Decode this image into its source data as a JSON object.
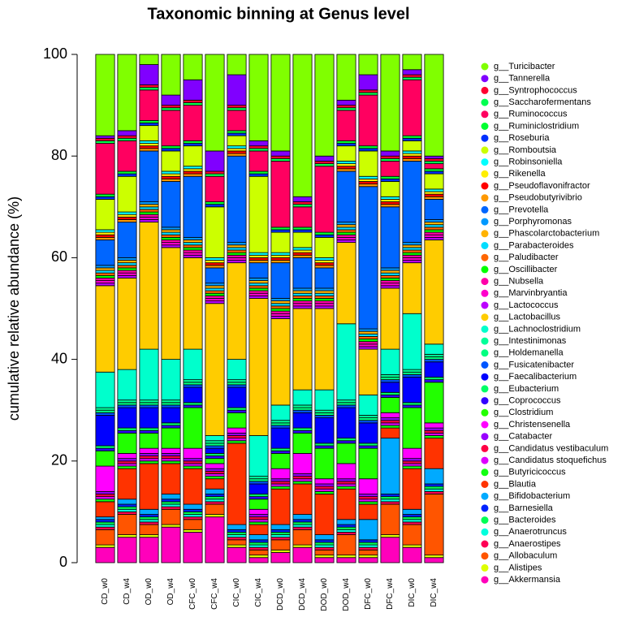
{
  "chart_data": {
    "type": "stacked_bar",
    "title": "Taxonomic binning at Genus level",
    "y_label": "cumulative relative abundance (%)",
    "categories": [
      "CD_w0",
      "CD_w4",
      "OD_w0",
      "OD_w4",
      "CFC_w0",
      "CFC_w4",
      "CIC_w0",
      "CIC_w4",
      "DCD_w0",
      "DCD_w4",
      "DOD_w0",
      "DOD_w4",
      "DFC_w0",
      "DFC_w4",
      "DIC_w0",
      "DIC_w4"
    ],
    "ylim": [
      0,
      100
    ],
    "yticks": [
      0,
      20,
      40,
      60,
      80,
      100
    ],
    "series": [
      {
        "name": "g__Turicibacter",
        "color": "#80ff00",
        "values": [
          16,
          15,
          2,
          8,
          5,
          19,
          4,
          17,
          19,
          28,
          20,
          9,
          4,
          19,
          3,
          20
        ]
      },
      {
        "name": "g__Tannerella",
        "color": "#8000ff",
        "values": [
          0.5,
          1,
          4,
          2,
          4,
          4,
          6,
          1,
          1,
          1,
          1,
          1,
          3,
          1,
          1,
          0.5
        ]
      },
      {
        "name": "g__Syntrophococcus",
        "color": "#ff0030",
        "values": [
          0.5,
          0.5,
          0.5,
          0.5,
          0.5,
          0.5,
          0.5,
          0.5,
          0.5,
          0.5,
          0.5,
          0.5,
          0.5,
          0.5,
          0.5,
          0.5
        ]
      },
      {
        "name": "g__Saccharofermentans",
        "color": "#00ff50",
        "values": [
          0.5,
          0.5,
          0.5,
          0.5,
          0.5,
          0.5,
          0.5,
          0.5,
          0.5,
          0.5,
          0.5,
          0.5,
          0.5,
          0.5,
          0.5,
          0.5
        ]
      },
      {
        "name": "g__Ruminococcus",
        "color": "#ff0060",
        "values": [
          10,
          6,
          6,
          7,
          7,
          5,
          4,
          4,
          13,
          4,
          13,
          6,
          10,
          3,
          11,
          1
        ]
      },
      {
        "name": "g__Ruminiclostridium",
        "color": "#00ff30",
        "values": [
          0.5,
          0.5,
          0.5,
          0.5,
          0.5,
          0.5,
          0.5,
          0.5,
          0.5,
          0.5,
          0.5,
          0.5,
          0.5,
          0.5,
          0.5,
          0.5
        ]
      },
      {
        "name": "g__Roseburia",
        "color": "#0030ff",
        "values": [
          0.5,
          0.5,
          0.5,
          0.5,
          0.5,
          0.5,
          0.5,
          0.5,
          0.5,
          0.5,
          0.5,
          0.5,
          0.5,
          0.5,
          0.5,
          0.5
        ]
      },
      {
        "name": "g__Romboutsia",
        "color": "#ccff00",
        "values": [
          6,
          7,
          3,
          4,
          4,
          10,
          2,
          15,
          4,
          3,
          4,
          3,
          5,
          3,
          2,
          3
        ]
      },
      {
        "name": "g__Robinsoniella",
        "color": "#00ffff",
        "values": [
          0.5,
          0.5,
          0.5,
          0.5,
          0.5,
          0.5,
          0.5,
          0.5,
          0.5,
          0.5,
          0.5,
          0.5,
          0.5,
          0.5,
          0.5,
          0.5
        ]
      },
      {
        "name": "g__Rikenella",
        "color": "#ffee00",
        "values": [
          0.5,
          0.5,
          0.5,
          0.5,
          0.5,
          0.5,
          0.5,
          0.5,
          0.5,
          0.5,
          0.5,
          0.5,
          0.5,
          0.5,
          0.5,
          0.5
        ]
      },
      {
        "name": "g__Pseudoflavonifractor",
        "color": "#ff0000",
        "values": [
          0.5,
          0.5,
          0.5,
          0.5,
          0.5,
          0.5,
          0.5,
          0.5,
          0.5,
          0.5,
          0.5,
          0.5,
          0.5,
          0.5,
          0.5,
          0.5
        ]
      },
      {
        "name": "g__Pseudobutyrivibrio",
        "color": "#ff9900",
        "values": [
          0.5,
          0.5,
          0.5,
          0.5,
          0.5,
          0.5,
          0.5,
          0.5,
          0.5,
          0.5,
          0.5,
          0.5,
          0.5,
          0.5,
          0.5,
          0.5
        ]
      },
      {
        "name": "g__Prevotella",
        "color": "#0066ff",
        "values": [
          5,
          7,
          10,
          9,
          12,
          3,
          17,
          3,
          7,
          6,
          4,
          10,
          28,
          12,
          16,
          4
        ]
      },
      {
        "name": "g__Porphyromonas",
        "color": "#0099ff",
        "values": [
          0.5,
          0.5,
          0.5,
          0.5,
          0.5,
          0.5,
          0.5,
          0.5,
          0.5,
          0.5,
          0.5,
          0.5,
          0.5,
          0.5,
          0.5,
          0.5
        ]
      },
      {
        "name": "g__Phascolarctobacterium",
        "color": "#ffb300",
        "values": [
          0.5,
          0.5,
          0.5,
          0.5,
          0.5,
          0.5,
          0.5,
          0.5,
          0.5,
          0.5,
          0.5,
          0.5,
          0.5,
          0.5,
          0.5,
          0.5
        ]
      },
      {
        "name": "g__Parabacteroides",
        "color": "#00ddff",
        "values": [
          0.5,
          0.5,
          0.5,
          0.5,
          0.5,
          0.5,
          0.5,
          0.5,
          0.5,
          0.5,
          0.5,
          0.5,
          0.5,
          0.5,
          0.5,
          0.5
        ]
      },
      {
        "name": "g__Paludibacter",
        "color": "#ff6600",
        "values": [
          0.5,
          0.5,
          0.5,
          0.5,
          0.5,
          0.5,
          0.5,
          0.5,
          0.5,
          0.5,
          0.5,
          0.5,
          0.5,
          0.5,
          0.5,
          0.5
        ]
      },
      {
        "name": "g__Oscillibacter",
        "color": "#00ff00",
        "values": [
          0.5,
          0.5,
          0.5,
          0.5,
          0.5,
          0.5,
          0.5,
          0.5,
          0.5,
          0.5,
          0.5,
          0.5,
          0.5,
          0.5,
          0.5,
          0.5
        ]
      },
      {
        "name": "g__Nubsella",
        "color": "#ff00aa",
        "values": [
          0.5,
          0.5,
          0.5,
          0.5,
          0.5,
          0.5,
          0.5,
          0.5,
          0.5,
          0.5,
          0.5,
          0.5,
          0.5,
          0.5,
          0.5,
          0.5
        ]
      },
      {
        "name": "g__Marvinbryantia",
        "color": "#ff00cc",
        "values": [
          0.5,
          0.5,
          0.5,
          0.5,
          0.5,
          0.5,
          0.5,
          0.5,
          0.5,
          0.5,
          0.5,
          0.5,
          0.5,
          0.5,
          0.5,
          0.5
        ]
      },
      {
        "name": "g__Lactococcus",
        "color": "#bb00ff",
        "values": [
          0.5,
          0.5,
          0.5,
          0.5,
          0.5,
          0.5,
          0.5,
          0.5,
          0.5,
          0.5,
          0.5,
          0.5,
          0.5,
          0.5,
          0.5,
          0.5
        ]
      },
      {
        "name": "g__Lactobacillus",
        "color": "#ffcc00",
        "values": [
          17,
          18,
          25,
          22,
          18,
          26,
          19,
          27,
          17,
          16,
          16,
          16,
          9,
          12,
          10,
          20.5
        ]
      },
      {
        "name": "g__Lachnoclostridium",
        "color": "#00ffcc",
        "values": [
          7,
          6,
          10,
          8,
          6,
          1,
          4,
          8,
          3,
          3,
          4,
          15,
          4,
          5,
          11,
          2
        ]
      },
      {
        "name": "g__Intestinimonas",
        "color": "#00ff99",
        "values": [
          0.5,
          0.5,
          0.5,
          0.5,
          0.5,
          0.5,
          0.5,
          0.5,
          0.5,
          0.5,
          0.5,
          0.5,
          0.5,
          0.5,
          0.5,
          0.5
        ]
      },
      {
        "name": "g__Holdemanella",
        "color": "#00ff80",
        "values": [
          0.5,
          0.5,
          0.5,
          0.5,
          0.5,
          0.5,
          0.5,
          0.5,
          0.5,
          0.5,
          0.5,
          0.5,
          0.5,
          0.5,
          0.5,
          0.5
        ]
      },
      {
        "name": "g__Fusicatenibacter",
        "color": "#0055ff",
        "values": [
          0.5,
          0.5,
          0.5,
          0.5,
          0.5,
          0.5,
          0.5,
          0.5,
          0.5,
          0.5,
          0.5,
          0.5,
          0.5,
          0.5,
          0.5,
          0.5
        ]
      },
      {
        "name": "g__Faecalibacterium",
        "color": "#0000ff",
        "values": [
          6,
          4,
          4,
          3,
          3,
          1,
          4,
          2,
          4,
          3,
          5,
          6,
          4,
          2,
          5,
          3
        ]
      },
      {
        "name": "g__Eubacterium",
        "color": "#00ff66",
        "values": [
          0.5,
          0.5,
          0.5,
          0.5,
          0.5,
          0.5,
          0.5,
          0.5,
          0.5,
          0.5,
          0.5,
          0.5,
          0.5,
          0.5,
          0.5,
          0.5
        ]
      },
      {
        "name": "g__Coprococcus",
        "color": "#3300ff",
        "values": [
          0.5,
          0.5,
          0.5,
          0.5,
          0.5,
          0.5,
          0.5,
          0.5,
          0.5,
          0.5,
          0.5,
          0.5,
          0.5,
          0.5,
          0.5,
          0.5
        ]
      },
      {
        "name": "g__Clostridium",
        "color": "#22ff00",
        "values": [
          3,
          4,
          3,
          4,
          8,
          1,
          3,
          2,
          3,
          4,
          6,
          4,
          6,
          3,
          8,
          8
        ]
      },
      {
        "name": "g__Christensenella",
        "color": "#ff00ff",
        "values": [
          5,
          1,
          1,
          1,
          2,
          1,
          1,
          1,
          2,
          4,
          1,
          3,
          3,
          1,
          2,
          1
        ]
      },
      {
        "name": "g__Catabacter",
        "color": "#9900ff",
        "values": [
          0.5,
          0.5,
          0.5,
          0.5,
          0.5,
          0.5,
          0.5,
          0.5,
          0.5,
          0.5,
          0.5,
          0.5,
          0.5,
          0.5,
          0.5,
          0.5
        ]
      },
      {
        "name": "g__Candidatus vestibaculum",
        "color": "#ff0044",
        "values": [
          0.5,
          0.5,
          0.5,
          0.5,
          0.5,
          0.5,
          0.5,
          0.5,
          0.5,
          0.5,
          0.5,
          0.5,
          0.5,
          0.5,
          0.5,
          0.5
        ]
      },
      {
        "name": "g__Candidatus stoquefichus",
        "color": "#dd00ff",
        "values": [
          0.5,
          0.5,
          0.5,
          0.5,
          0.5,
          0.5,
          0.5,
          0.5,
          0.5,
          0.5,
          0.5,
          0.5,
          0.5,
          0.5,
          0.5,
          0.5
        ]
      },
      {
        "name": "g__Butyricicoccus",
        "color": "#11ff11",
        "values": [
          0.5,
          0.5,
          0.5,
          0.5,
          0.5,
          0.5,
          0.5,
          0.5,
          0.5,
          0.5,
          0.5,
          0.5,
          0.5,
          0.5,
          0.5,
          0.5
        ]
      },
      {
        "name": "g__Blautia",
        "color": "#ff3300",
        "values": [
          3,
          6,
          9,
          6,
          7,
          2,
          16,
          2,
          7,
          6,
          8,
          6,
          3,
          2,
          8,
          6
        ]
      },
      {
        "name": "g__Bifidobacterium",
        "color": "#00aaff",
        "values": [
          0.5,
          1,
          1,
          1,
          1,
          1,
          1,
          1,
          1,
          1,
          1,
          1,
          4,
          11,
          1,
          3
        ]
      },
      {
        "name": "g__Barnesiella",
        "color": "#0022ff",
        "values": [
          0.5,
          0.5,
          0.5,
          0.5,
          0.5,
          0.5,
          0.5,
          0.5,
          0.5,
          0.5,
          0.5,
          0.5,
          0.5,
          0.5,
          0.5,
          0.5
        ]
      },
      {
        "name": "g__Bacteroides",
        "color": "#00ff55",
        "values": [
          0.5,
          0.5,
          0.5,
          0.5,
          0.5,
          0.5,
          0.5,
          0.5,
          0.5,
          0.5,
          0.5,
          0.5,
          0.5,
          0.5,
          0.5,
          0.5
        ]
      },
      {
        "name": "g__Anaerotruncus",
        "color": "#00ffdd",
        "values": [
          0.5,
          0.5,
          0.5,
          0.5,
          0.5,
          0.5,
          0.5,
          0.5,
          0.5,
          0.5,
          0.5,
          0.5,
          0.5,
          0.5,
          0.5,
          0.5
        ]
      },
      {
        "name": "g__Anaerostipes",
        "color": "#ff0055",
        "values": [
          0.5,
          0.5,
          0.5,
          0.5,
          0.5,
          0.5,
          0.5,
          0.5,
          0.5,
          0.5,
          0.5,
          0.5,
          0.5,
          0.5,
          0.5,
          0.5
        ]
      },
      {
        "name": "g__Allobaculum",
        "color": "#ff5500",
        "values": [
          3,
          4,
          2,
          3,
          2,
          2,
          1,
          1,
          2,
          3,
          1,
          4,
          1,
          6,
          4,
          12
        ]
      },
      {
        "name": "g__Alistipes",
        "color": "#ddff00",
        "values": [
          0.5,
          0.5,
          0.5,
          0.5,
          0.5,
          0.5,
          0.5,
          0.5,
          0.5,
          0.5,
          0.5,
          0.5,
          0.5,
          0.5,
          0.5,
          0.5
        ]
      },
      {
        "name": "g__Akkermansia",
        "color": "#ff00bb",
        "values": [
          3,
          5,
          5,
          7,
          6,
          9,
          3,
          1,
          2,
          3,
          1,
          1,
          1,
          5,
          3,
          1
        ]
      }
    ]
  }
}
